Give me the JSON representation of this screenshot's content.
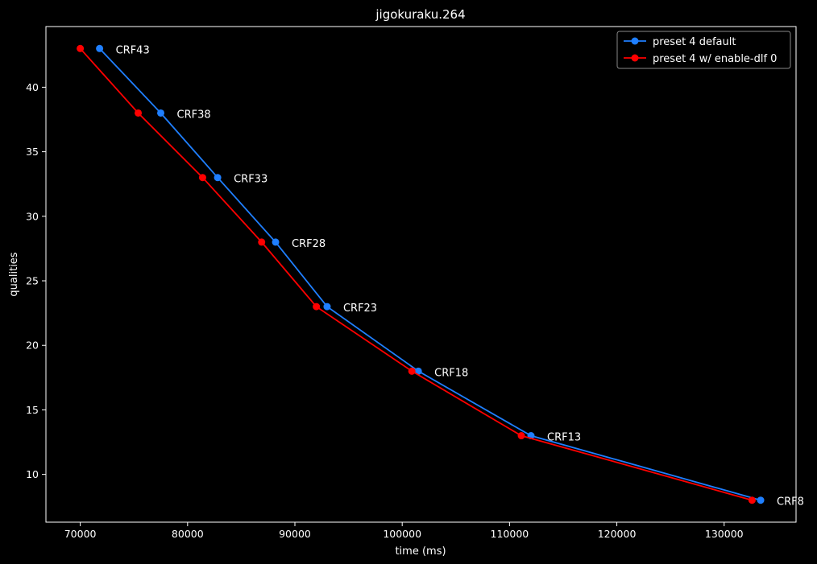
{
  "chart_data": {
    "type": "line",
    "title": "jigokuraku.264",
    "xlabel": "time (ms)",
    "ylabel": "qualities",
    "xlim": [
      66800,
      136700
    ],
    "ylim": [
      6.3,
      44.7
    ],
    "x_ticks": [
      70000,
      80000,
      90000,
      100000,
      110000,
      120000,
      130000
    ],
    "y_ticks": [
      10,
      15,
      20,
      25,
      30,
      35,
      40
    ],
    "grid": false,
    "legend_position": "top-right",
    "background": "#000000",
    "series": [
      {
        "name": "preset 4 default",
        "color": "#1f7fff",
        "marker": "circle",
        "points": [
          {
            "x": 71800,
            "y": 43,
            "label": "CRF43"
          },
          {
            "x": 77500,
            "y": 38,
            "label": "CRF38"
          },
          {
            "x": 82800,
            "y": 33,
            "label": "CRF33"
          },
          {
            "x": 88200,
            "y": 28,
            "label": "CRF28"
          },
          {
            "x": 93000,
            "y": 23,
            "label": "CRF23"
          },
          {
            "x": 101500,
            "y": 18,
            "label": "CRF18"
          },
          {
            "x": 112000,
            "y": 13,
            "label": "CRF13"
          },
          {
            "x": 133400,
            "y": 8,
            "label": "CRF8"
          }
        ]
      },
      {
        "name": "preset 4 w/ enable-dlf 0",
        "color": "#ff0000",
        "marker": "circle",
        "points": [
          {
            "x": 70000,
            "y": 43
          },
          {
            "x": 75400,
            "y": 38
          },
          {
            "x": 81400,
            "y": 33
          },
          {
            "x": 86900,
            "y": 28
          },
          {
            "x": 92000,
            "y": 23
          },
          {
            "x": 100900,
            "y": 18
          },
          {
            "x": 111100,
            "y": 13
          },
          {
            "x": 132600,
            "y": 8
          }
        ]
      }
    ]
  }
}
